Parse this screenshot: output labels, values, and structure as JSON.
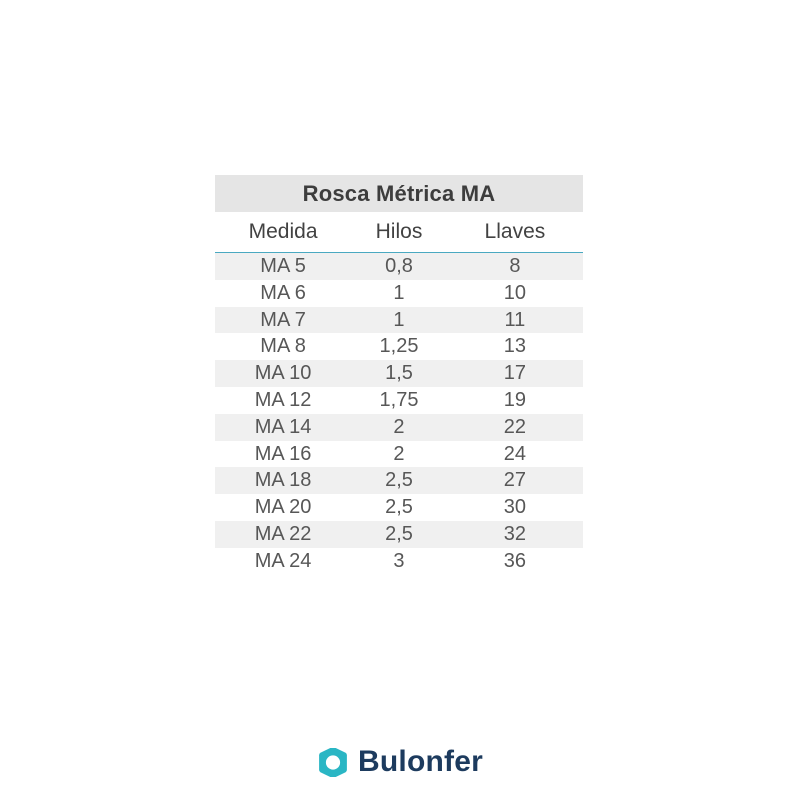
{
  "chart_data": {
    "type": "table",
    "title": "Rosca Métrica MA",
    "columns": [
      "Medida",
      "Hilos",
      "Llaves"
    ],
    "rows": [
      [
        "MA 5",
        "0,8",
        "8"
      ],
      [
        "MA 6",
        "1",
        "10"
      ],
      [
        "MA 7",
        "1",
        "11"
      ],
      [
        "MA 8",
        "1,25",
        "13"
      ],
      [
        "MA 10",
        "1,5",
        "17"
      ],
      [
        "MA 12",
        "1,75",
        "19"
      ],
      [
        "MA 14",
        "2",
        "22"
      ],
      [
        "MA 16",
        "2",
        "24"
      ],
      [
        "MA 18",
        "2,5",
        "27"
      ],
      [
        "MA 20",
        "2,5",
        "30"
      ],
      [
        "MA 22",
        "2,5",
        "32"
      ],
      [
        "MA 24",
        "3",
        "36"
      ]
    ]
  },
  "logo": {
    "brand": "Bulonfer",
    "icon": "hex-nut-icon"
  },
  "colors": {
    "accent_teal": "#2ab6c4",
    "brand_navy": "#1d3b5e",
    "title_bg": "#e5e5e5",
    "row_alt_bg": "#f0f0f0",
    "header_underline": "#4aa9c1",
    "title_text": "#3d3d3d",
    "body_text": "#575757"
  }
}
